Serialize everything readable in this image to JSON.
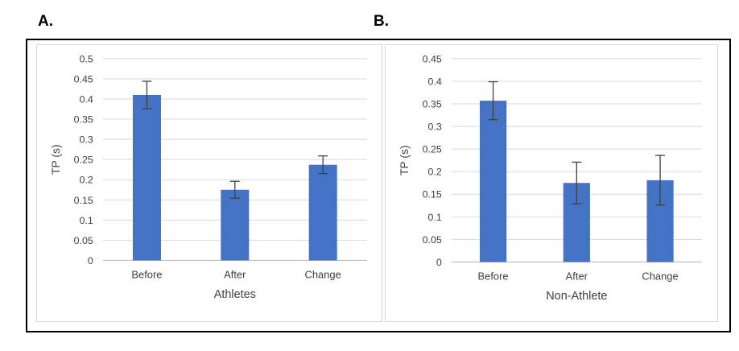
{
  "figure": {
    "panel_a_label": "A.",
    "panel_b_label": "B."
  },
  "colors": {
    "bar": "#4472C4",
    "error_bar": "#404040",
    "gridline": "#D9D9D9",
    "axis_line": "#BFBFBF",
    "text": "#404040",
    "panel_border": "#D6D6D6",
    "outer_border": "#000000"
  },
  "chart_data": [
    {
      "id": "athletes",
      "type": "bar",
      "title": "",
      "categories": [
        "Before",
        "After",
        "Change"
      ],
      "values": [
        0.41,
        0.175,
        0.237
      ],
      "errors": [
        0.034,
        0.021,
        0.022
      ],
      "xlabel": "Athletes",
      "ylabel": "TP (s)",
      "ylim": [
        0,
        0.5
      ],
      "ytick_step": 0.05,
      "grid": true,
      "legend": false
    },
    {
      "id": "non_athlete",
      "type": "bar",
      "title": "",
      "categories": [
        "Before",
        "After",
        "Change"
      ],
      "values": [
        0.357,
        0.175,
        0.181
      ],
      "errors": [
        0.042,
        0.046,
        0.055
      ],
      "xlabel": "Non-Athlete",
      "ylabel": "TP (s)",
      "ylim": [
        0,
        0.45
      ],
      "ytick_step": 0.05,
      "grid": true,
      "legend": false
    }
  ]
}
